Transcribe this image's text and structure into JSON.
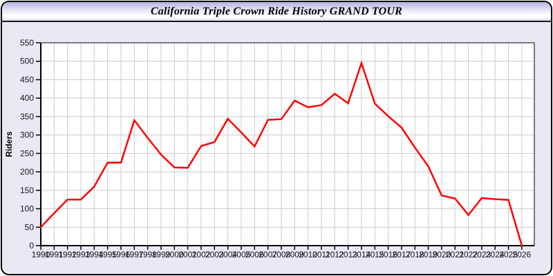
{
  "window": {
    "title": "California Triple Crown Ride History GRAND TOUR"
  },
  "chart_data": {
    "type": "line",
    "title": "California Triple Crown Ride History GRAND TOUR",
    "xlabel": "",
    "ylabel": "Riders",
    "x": [
      1990,
      1991,
      1992,
      1993,
      1994,
      1995,
      1996,
      1997,
      1998,
      1999,
      2000,
      2001,
      2002,
      2003,
      2004,
      2005,
      2006,
      2007,
      2008,
      2009,
      2010,
      2011,
      2012,
      2013,
      2014,
      2015,
      2016,
      2017,
      2018,
      2019,
      2020,
      2021,
      2022,
      2023,
      2024,
      2025,
      2026
    ],
    "series": [
      {
        "name": "Riders",
        "values": [
          50,
          88,
          125,
          125,
          160,
          225,
          225,
          340,
          292,
          247,
          212,
          211,
          270,
          281,
          344,
          307,
          269,
          341,
          343,
          393,
          375,
          381,
          412,
          386,
          495,
          385,
          351,
          320,
          266,
          215,
          136,
          128,
          83,
          129,
          126,
          124,
          0
        ]
      }
    ],
    "ylim": [
      0,
      550
    ],
    "yticks": [
      0,
      50,
      100,
      150,
      200,
      250,
      300,
      350,
      400,
      450,
      500,
      550
    ],
    "grid": true,
    "legend": false,
    "line_color": "#ff0000",
    "plot_bg": "#ffffff",
    "grid_color": "#cccccc",
    "axis_color": "#000000",
    "label_color": "#16161e"
  }
}
